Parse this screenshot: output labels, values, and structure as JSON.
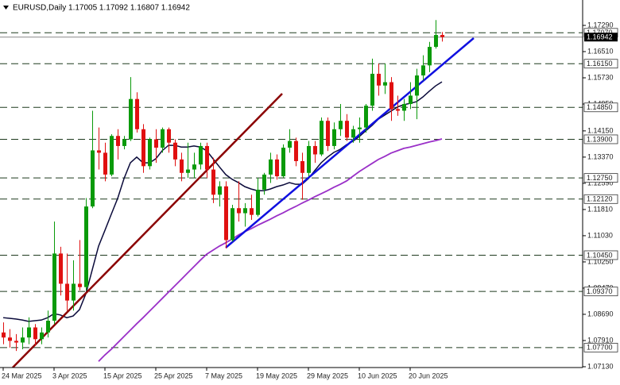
{
  "chart_data": {
    "type": "candlestick",
    "title": "EURUSD,Daily 1.17005 1.17092 1.16807 1.16942",
    "categories": [
      "24 Mar 2025",
      null,
      null,
      null,
      null,
      null,
      null,
      null,
      "3 Apr 2025",
      null,
      null,
      null,
      null,
      null,
      null,
      null,
      "15 Apr 2025",
      null,
      null,
      null,
      null,
      null,
      null,
      null,
      "25 Apr 2025",
      null,
      null,
      null,
      null,
      null,
      null,
      null,
      "7 May 2025",
      null,
      null,
      null,
      null,
      null,
      null,
      null,
      "19 May 2025",
      null,
      null,
      null,
      null,
      null,
      null,
      null,
      "29 May 2025",
      null,
      null,
      null,
      null,
      null,
      null,
      null,
      "10 Jun 2025",
      null,
      null,
      null,
      null,
      null,
      null,
      null,
      "20 Jun 2025",
      null,
      null,
      null,
      null,
      null
    ],
    "open": [
      1.0815,
      1.08,
      1.079,
      1.0785,
      1.08,
      1.083,
      1.0795,
      1.0815,
      1.085,
      1.105,
      1.096,
      1.091,
      1.096,
      1.095,
      1.119,
      1.1357,
      1.135,
      1.1285,
      1.14,
      1.137,
      1.139,
      1.151,
      1.142,
      1.131,
      1.139,
      1.1365,
      1.142,
      1.138,
      1.133,
      1.129,
      1.13,
      1.1315,
      1.137,
      1.13,
      1.1225,
      1.125,
      1.109,
      1.1185,
      1.117,
      1.1185,
      1.1165,
      1.124,
      1.1285,
      1.133,
      1.128,
      1.1365,
      1.1385,
      1.1325,
      1.129,
      1.137,
      1.1345,
      1.1445,
      1.137,
      1.142,
      1.1445,
      1.1395,
      1.142,
      1.1425,
      1.149,
      1.1585,
      1.155,
      1.156,
      1.148,
      1.1475,
      1.1495,
      1.152,
      1.158,
      1.161,
      1.1665,
      1.17005
    ],
    "high": [
      1.0845,
      1.0825,
      1.081,
      1.083,
      1.086,
      1.084,
      1.083,
      1.088,
      1.1145,
      1.107,
      1.105,
      1.103,
      1.109,
      1.1215,
      1.1475,
      1.1425,
      1.138,
      1.1405,
      1.142,
      1.14,
      1.1575,
      1.153,
      1.1435,
      1.1395,
      1.142,
      1.1425,
      1.1425,
      1.139,
      1.135,
      1.138,
      1.135,
      1.138,
      1.138,
      1.1335,
      1.1265,
      1.1265,
      1.1195,
      1.1265,
      1.12,
      1.1225,
      1.1275,
      1.129,
      1.135,
      1.1345,
      1.1375,
      1.142,
      1.1395,
      1.135,
      1.1385,
      1.1385,
      1.1455,
      1.1455,
      1.144,
      1.1495,
      1.1465,
      1.143,
      1.1455,
      1.1495,
      1.163,
      1.1615,
      1.1615,
      1.1575,
      1.152,
      1.151,
      1.156,
      1.16,
      1.164,
      1.168,
      1.1745,
      1.17092
    ],
    "low": [
      1.078,
      1.077,
      1.076,
      1.0765,
      1.078,
      1.0775,
      1.078,
      1.08,
      1.084,
      1.0925,
      1.088,
      1.088,
      1.094,
      1.094,
      1.1185,
      1.13,
      1.1265,
      1.128,
      1.133,
      1.136,
      1.1385,
      1.141,
      1.129,
      1.13,
      1.132,
      1.135,
      1.135,
      1.131,
      1.1265,
      1.1275,
      1.1275,
      1.13,
      1.1275,
      1.12,
      1.119,
      1.1065,
      1.1085,
      1.1145,
      1.113,
      1.115,
      1.116,
      1.1225,
      1.126,
      1.127,
      1.1275,
      1.135,
      1.131,
      1.121,
      1.128,
      1.132,
      1.134,
      1.1355,
      1.136,
      1.14,
      1.1385,
      1.138,
      1.138,
      1.141,
      1.1475,
      1.152,
      1.1525,
      1.1445,
      1.146,
      1.1445,
      1.148,
      1.145,
      1.1565,
      1.159,
      1.166,
      1.16807
    ],
    "close": [
      1.08,
      1.079,
      1.0785,
      1.08,
      1.083,
      1.0795,
      1.0815,
      1.085,
      1.105,
      1.096,
      1.091,
      1.096,
      1.095,
      1.119,
      1.1357,
      1.135,
      1.1285,
      1.14,
      1.137,
      1.139,
      1.151,
      1.142,
      1.131,
      1.139,
      1.1365,
      1.142,
      1.138,
      1.133,
      1.129,
      1.13,
      1.1315,
      1.137,
      1.13,
      1.1225,
      1.125,
      1.109,
      1.1185,
      1.117,
      1.1185,
      1.1165,
      1.124,
      1.1285,
      1.133,
      1.128,
      1.1365,
      1.1385,
      1.1325,
      1.129,
      1.137,
      1.1345,
      1.1445,
      1.137,
      1.142,
      1.1445,
      1.1395,
      1.142,
      1.1425,
      1.149,
      1.1585,
      1.155,
      1.156,
      1.148,
      1.1475,
      1.1495,
      1.152,
      1.158,
      1.161,
      1.1665,
      1.17005,
      1.16942
    ],
    "up_color": "#0a9a0a",
    "down_color": "#e01010",
    "lines": [
      {
        "color": "#0a0a3a",
        "values": [
          1.0859,
          1.0857,
          1.0855,
          1.0852,
          1.0848,
          1.085,
          1.0852,
          1.0859,
          1.0871,
          1.0867,
          1.0859,
          1.0864,
          1.0883,
          1.093,
          1.1001,
          1.1072,
          1.1119,
          1.1167,
          1.1214,
          1.1273,
          1.132,
          1.1337,
          1.132,
          1.132,
          1.1332,
          1.1356,
          1.1372,
          1.1372,
          1.1367,
          1.1367,
          1.137,
          1.1367,
          1.1356,
          1.1332,
          1.1308,
          1.1285,
          1.1271,
          1.1261,
          1.1249,
          1.1242,
          1.1237,
          1.1237,
          1.1242,
          1.1249,
          1.1254,
          1.1261,
          1.1256,
          1.1256,
          1.1273,
          1.1297,
          1.132,
          1.1337,
          1.1351,
          1.136,
          1.1374,
          1.1384,
          1.1398,
          1.1415,
          1.1431,
          1.145,
          1.1462,
          1.1474,
          1.1486,
          1.1493,
          1.1497,
          1.1502,
          1.1516,
          1.1533,
          1.1549,
          1.1561
        ]
      },
      {
        "color": "#9a30c8",
        "values": [
          null,
          null,
          null,
          null,
          null,
          null,
          null,
          null,
          null,
          null,
          null,
          null,
          null,
          null,
          null,
          1.0729,
          1.0748,
          1.0765,
          1.0784,
          1.0803,
          1.0822,
          1.0841,
          1.0859,
          1.0878,
          1.0897,
          1.0916,
          1.0935,
          1.0954,
          1.0973,
          1.0992,
          1.1011,
          1.103,
          1.1048,
          1.106,
          1.1072,
          1.1082,
          1.1093,
          1.1105,
          1.1115,
          1.1124,
          1.1134,
          1.1143,
          1.1152,
          1.1162,
          1.1171,
          1.1181,
          1.119,
          1.12,
          1.1209,
          1.1219,
          1.1228,
          1.1237,
          1.1247,
          1.1256,
          1.1266,
          1.128,
          1.1294,
          1.1306,
          1.1318,
          1.133,
          1.1339,
          1.1349,
          1.1356,
          1.1363,
          1.1367,
          1.1372,
          1.1377,
          1.1382,
          1.1386,
          1.1391
        ]
      }
    ],
    "ylim": [
      1.07106,
      1.18046
    ],
    "yticks": [
      {
        "value": 1.1729,
        "label": "1.17290"
      },
      {
        "value": 1.1651,
        "label": "1.16510"
      },
      {
        "value": 1.1573,
        "label": "1.15730"
      },
      {
        "value": 1.1495,
        "label": "1.14950"
      },
      {
        "value": 1.1415,
        "label": "1.14150"
      },
      {
        "value": 1.1337,
        "label": "1.13370"
      },
      {
        "value": 1.1259,
        "label": "1.12590"
      },
      {
        "value": 1.1181,
        "label": "1.11810"
      },
      {
        "value": 1.1103,
        "label": "1.11030"
      },
      {
        "value": 1.1025,
        "label": "1.10250"
      },
      {
        "value": 1.0947,
        "label": "1.09470"
      },
      {
        "value": 1.0869,
        "label": "1.08690"
      },
      {
        "value": 1.0791,
        "label": "1.07910"
      },
      {
        "value": 1.0713,
        "label": "1.07130"
      }
    ],
    "levels": [
      {
        "value": 1.1707,
        "label": "1.17070"
      },
      {
        "value": 1.1615,
        "label": "1.16150"
      },
      {
        "value": 1.1485,
        "label": "1.14850"
      },
      {
        "value": 1.139,
        "label": "1.13900"
      },
      {
        "value": 1.1275,
        "label": "1.12750"
      },
      {
        "value": 1.1212,
        "label": "1.12120"
      },
      {
        "value": 1.1045,
        "label": "1.10450"
      },
      {
        "value": 1.0937,
        "label": "1.09370"
      },
      {
        "value": 1.077,
        "label": "1.07700"
      }
    ],
    "level_color": "#1e3a1e",
    "current_price": {
      "value": 1.16942,
      "label": "1.16942"
    }
  }
}
